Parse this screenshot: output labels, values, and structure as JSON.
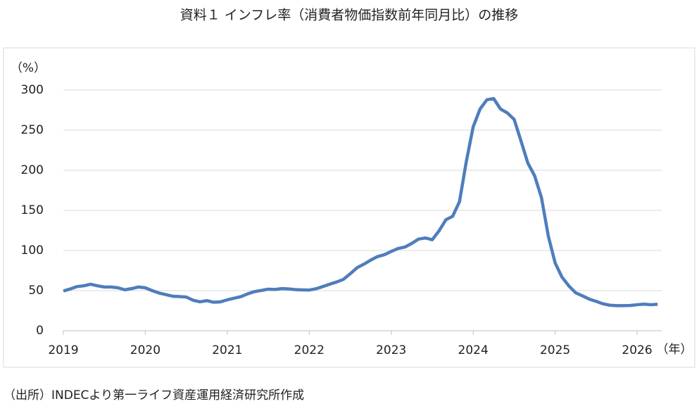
{
  "chart_data": {
    "type": "line",
    "title": "資料１ インフレ率（消費者物価指数前年同月比）の推移",
    "y_label": "（%）",
    "x_label": "（年）",
    "source": "（出所）INDECより第一ライフ資産運用経済研究所作成",
    "x": [
      2019,
      2019.083,
      2019.167,
      2019.25,
      2019.333,
      2019.417,
      2019.5,
      2019.583,
      2019.667,
      2019.75,
      2019.833,
      2019.917,
      2020,
      2020.083,
      2020.167,
      2020.25,
      2020.333,
      2020.417,
      2020.5,
      2020.583,
      2020.667,
      2020.75,
      2020.833,
      2020.917,
      2021,
      2021.083,
      2021.167,
      2021.25,
      2021.333,
      2021.417,
      2021.5,
      2021.583,
      2021.667,
      2021.75,
      2021.833,
      2021.917,
      2022,
      2022.083,
      2022.167,
      2022.25,
      2022.333,
      2022.417,
      2022.5,
      2022.583,
      2022.667,
      2022.75,
      2022.833,
      2022.917,
      2023,
      2023.083,
      2023.167,
      2023.25,
      2023.333,
      2023.417,
      2023.5,
      2023.583,
      2023.667,
      2023.75,
      2023.833,
      2023.917,
      2024,
      2024.083,
      2024.167,
      2024.25,
      2024.333,
      2024.417,
      2024.5,
      2024.583,
      2024.667,
      2024.75,
      2024.833,
      2024.917,
      2025,
      2025.083,
      2025.167,
      2025.25,
      2025.333,
      2025.417,
      2025.5,
      2025.583,
      2025.667,
      2025.75,
      2025.833,
      2025.917,
      2026,
      2026.083,
      2026.167,
      2026.25
    ],
    "series": [
      {
        "name": "インフレ率",
        "color": "#4f7dbd",
        "values": [
          49.5,
          52,
          55,
          56,
          58,
          56,
          54.5,
          54.5,
          53.5,
          51,
          52.5,
          54.5,
          53.5,
          50,
          47,
          45,
          43,
          42.5,
          42,
          38,
          36,
          37.5,
          35.5,
          36,
          38.5,
          40.5,
          42.5,
          46,
          48.8,
          50.2,
          51.8,
          51.4,
          52.5,
          52.1,
          51.2,
          50.9,
          50.7,
          52.3,
          55.1,
          58,
          60.7,
          64,
          71,
          78.5,
          83,
          88,
          92.4,
          94.8,
          98.8,
          102.5,
          104.3,
          108.8,
          114.2,
          115.6,
          113.4,
          124.4,
          138.3,
          142.7,
          160.9,
          211.4,
          254.2,
          276.2,
          287.9,
          289.4,
          276.4,
          271.5,
          263.4,
          236.7,
          209,
          193,
          166,
          117.8,
          84.5,
          66.9,
          55.9,
          47.3,
          43.5,
          39.4,
          36.6,
          33.6,
          31.8,
          31.3,
          31.3,
          31.5,
          32.4,
          33.1,
          32.4,
          33
        ]
      }
    ],
    "xlim": [
      2019,
      2026.3
    ],
    "xticks": [
      2019,
      2020,
      2021,
      2022,
      2023,
      2024,
      2025,
      2026
    ],
    "ylim": [
      0,
      300
    ],
    "yticks": [
      0,
      50,
      100,
      150,
      200,
      250,
      300
    ],
    "grid": true
  }
}
